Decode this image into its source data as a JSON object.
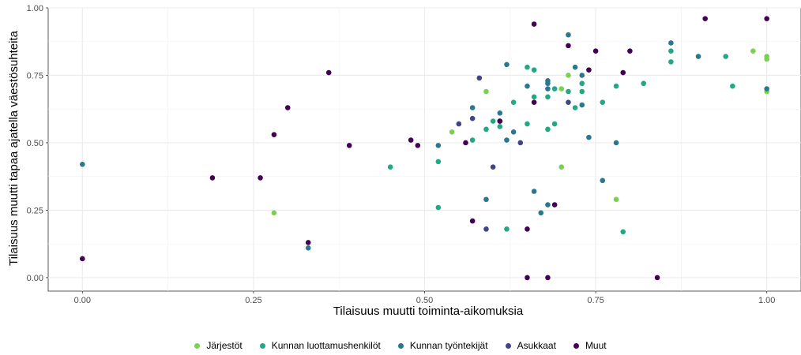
{
  "chart_data": {
    "type": "scatter",
    "xlabel": "Tilaisuus muutti toiminta-aikomuksia",
    "ylabel": "Tilaisuus muutti tapaa ajatella väestösuhteita",
    "xlim": [
      -0.05,
      1.05
    ],
    "ylim": [
      -0.05,
      1.0
    ],
    "x_ticks": [
      "0.00",
      "0.25",
      "0.50",
      "0.75",
      "1.00"
    ],
    "y_ticks": [
      "0.00",
      "0.25",
      "0.50",
      "0.75",
      "1.00"
    ],
    "grid": true,
    "legend_position": "bottom",
    "series": [
      {
        "name": "Järjestöt",
        "color": "#7ad151",
        "points": [
          [
            0.28,
            0.24
          ],
          [
            0.54,
            0.54
          ],
          [
            0.59,
            0.69
          ],
          [
            0.7,
            0.7
          ],
          [
            0.71,
            0.75
          ],
          [
            0.7,
            0.41
          ],
          [
            0.78,
            0.29
          ],
          [
            0.98,
            0.84
          ],
          [
            1.0,
            0.82
          ],
          [
            1.0,
            0.81
          ],
          [
            1.0,
            0.69
          ]
        ]
      },
      {
        "name": "Kunnan luottamushenkilöt",
        "color": "#22a884",
        "points": [
          [
            0.45,
            0.41
          ],
          [
            0.52,
            0.43
          ],
          [
            0.52,
            0.26
          ],
          [
            0.57,
            0.51
          ],
          [
            0.59,
            0.55
          ],
          [
            0.61,
            0.56
          ],
          [
            0.62,
            0.18
          ],
          [
            0.63,
            0.65
          ],
          [
            0.65,
            0.78
          ],
          [
            0.65,
            0.57
          ],
          [
            0.66,
            0.77
          ],
          [
            0.66,
            0.67
          ],
          [
            0.68,
            0.55
          ],
          [
            0.68,
            0.67
          ],
          [
            0.69,
            0.57
          ],
          [
            0.69,
            0.7
          ],
          [
            0.71,
            0.69
          ],
          [
            0.72,
            0.63
          ],
          [
            0.73,
            0.69
          ],
          [
            0.76,
            0.65
          ],
          [
            0.78,
            0.71
          ],
          [
            0.79,
            0.17
          ],
          [
            0.82,
            0.72
          ],
          [
            0.86,
            0.84
          ],
          [
            0.86,
            0.8
          ],
          [
            0.94,
            0.82
          ],
          [
            0.95,
            0.71
          ],
          [
            0.73,
            0.72
          ],
          [
            0.6,
            0.58
          ]
        ]
      },
      {
        "name": "Kunnan työntekijät",
        "color": "#2a788e",
        "points": [
          [
            0.0,
            0.42
          ],
          [
            0.33,
            0.11
          ],
          [
            0.52,
            0.49
          ],
          [
            0.57,
            0.63
          ],
          [
            0.59,
            0.29
          ],
          [
            0.61,
            0.61
          ],
          [
            0.62,
            0.79
          ],
          [
            0.62,
            0.51
          ],
          [
            0.63,
            0.54
          ],
          [
            0.65,
            0.71
          ],
          [
            0.66,
            0.32
          ],
          [
            0.67,
            0.24
          ],
          [
            0.68,
            0.7
          ],
          [
            0.68,
            0.72
          ],
          [
            0.68,
            0.73
          ],
          [
            0.68,
            0.27
          ],
          [
            0.71,
            0.9
          ],
          [
            0.72,
            0.78
          ],
          [
            0.73,
            0.75
          ],
          [
            0.73,
            0.64
          ],
          [
            0.74,
            0.52
          ],
          [
            0.76,
            0.36
          ],
          [
            0.78,
            0.5
          ],
          [
            0.86,
            0.87
          ],
          [
            0.9,
            0.82
          ],
          [
            1.0,
            0.7
          ]
        ]
      },
      {
        "name": "Asukkaat",
        "color": "#414487",
        "points": [
          [
            0.55,
            0.57
          ],
          [
            0.57,
            0.59
          ],
          [
            0.58,
            0.74
          ],
          [
            0.59,
            0.18
          ],
          [
            0.6,
            0.41
          ],
          [
            0.61,
            0.58
          ],
          [
            0.64,
            0.5
          ],
          [
            0.71,
            0.65
          ]
        ]
      },
      {
        "name": "Muut",
        "color": "#440154",
        "points": [
          [
            0.0,
            0.07
          ],
          [
            0.19,
            0.37
          ],
          [
            0.26,
            0.37
          ],
          [
            0.28,
            0.53
          ],
          [
            0.3,
            0.63
          ],
          [
            0.33,
            0.13
          ],
          [
            0.36,
            0.76
          ],
          [
            0.39,
            0.49
          ],
          [
            0.48,
            0.51
          ],
          [
            0.49,
            0.49
          ],
          [
            0.56,
            0.5
          ],
          [
            0.57,
            0.21
          ],
          [
            0.61,
            0.58
          ],
          [
            0.65,
            0.18
          ],
          [
            0.65,
            0.0
          ],
          [
            0.66,
            0.94
          ],
          [
            0.66,
            0.65
          ],
          [
            0.68,
            0.0
          ],
          [
            0.69,
            0.27
          ],
          [
            0.71,
            0.86
          ],
          [
            0.74,
            0.77
          ],
          [
            0.75,
            0.84
          ],
          [
            0.79,
            0.76
          ],
          [
            0.8,
            0.84
          ],
          [
            0.84,
            0.0
          ],
          [
            0.91,
            0.96
          ],
          [
            1.0,
            0.96
          ]
        ]
      }
    ]
  }
}
